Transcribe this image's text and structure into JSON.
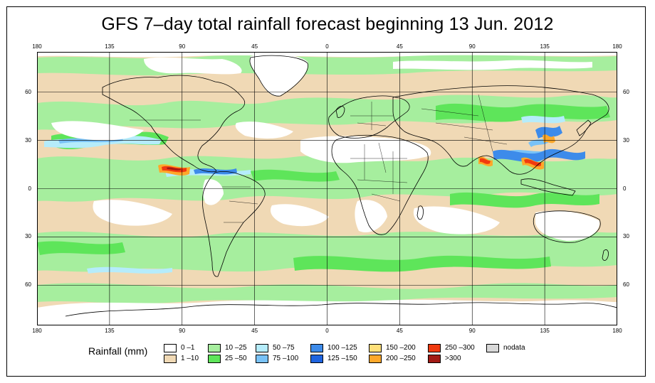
{
  "title": "GFS 7–day total rainfall forecast beginning 13 Jun. 2012",
  "axes": {
    "lon_ticks_top": [
      "180",
      "135",
      "90",
      "45",
      "0",
      "45",
      "90",
      "135",
      "180"
    ],
    "lon_ticks_bottom": [
      "180",
      "135",
      "90",
      "45",
      "0",
      "45",
      "90",
      "135",
      "180"
    ],
    "lat_ticks_left": [
      "60",
      "30",
      "0",
      "30",
      "60"
    ],
    "lat_ticks_right": [
      "60",
      "30",
      "0",
      "30",
      "60"
    ],
    "lon_range": [
      -180,
      180
    ],
    "lat_range": [
      -85,
      85
    ],
    "grid": true
  },
  "legend": {
    "title": "Rainfall (mm)",
    "items": [
      {
        "label": "0 –1",
        "color": "#ffffff"
      },
      {
        "label": "1 –10",
        "color": "#f0d9b5"
      },
      {
        "label": "10 –25",
        "color": "#a6ee9e"
      },
      {
        "label": "25 –50",
        "color": "#5ee55a"
      },
      {
        "label": "50 –75",
        "color": "#b5ecfb"
      },
      {
        "label": "75 –100",
        "color": "#79c2f7"
      },
      {
        "label": "100 –125",
        "color": "#3d8bea"
      },
      {
        "label": "125 –150",
        "color": "#1e64e0"
      },
      {
        "label": "150 –200",
        "color": "#ffe07a"
      },
      {
        "label": "200 –250",
        "color": "#fea82a"
      },
      {
        "label": "250 –300",
        "color": "#f03a10"
      },
      {
        "label": ">300",
        "color": "#a21a14"
      },
      {
        "label": "nodata",
        "color": "#d8d8d8"
      }
    ]
  }
}
